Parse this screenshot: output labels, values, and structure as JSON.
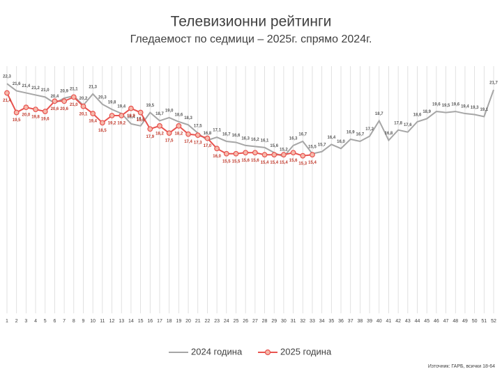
{
  "chart_data": {
    "type": "line",
    "title": "Телевизионни рейтинги",
    "subtitle": "Гледаемост по седмици – 2025г. спрямо 2024г.",
    "source": "Източник: ГАРБ, всички 18-64",
    "categories": [
      "1",
      "2",
      "3",
      "4",
      "5",
      "6",
      "7",
      "8",
      "9",
      "10",
      "11",
      "12",
      "13",
      "14",
      "15",
      "16",
      "17",
      "18",
      "19",
      "20",
      "21",
      "22",
      "23",
      "24",
      "25",
      "26",
      "27",
      "28",
      "29",
      "30",
      "31",
      "32",
      "33",
      "34",
      "35",
      "36",
      "37",
      "38",
      "39",
      "40",
      "41",
      "42",
      "43",
      "44",
      "45",
      "46",
      "47",
      "48",
      "49",
      "50",
      "51",
      "52"
    ],
    "ylim": [
      0,
      24
    ],
    "grid": true,
    "legend": "bottom",
    "series": [
      {
        "name": "2024 година",
        "color": "#a6a6a6",
        "values": [
          22.3,
          21.6,
          21.4,
          21.2,
          21.0,
          20.4,
          20.9,
          21.1,
          20.2,
          21.3,
          20.3,
          19.8,
          19.4,
          18.4,
          18.2,
          19.5,
          18.7,
          19.0,
          18.6,
          18.3,
          17.5,
          16.8,
          17.1,
          16.7,
          16.6,
          16.3,
          16.2,
          16.1,
          15.6,
          15.2,
          16.3,
          16.7,
          15.5,
          15.7,
          16.4,
          16.0,
          16.9,
          16.7,
          17.2,
          18.7,
          16.8,
          17.8,
          17.6,
          18.6,
          18.9,
          19.6,
          19.5,
          19.6,
          19.4,
          19.3,
          19.1,
          21.7
        ],
        "value_labels": [
          "22,3",
          "21,6",
          "21,4",
          "21,2",
          "21,0",
          "20,4",
          "20,9",
          "21,1",
          "20,2",
          "21,3",
          "20,3",
          "19,8",
          "19,4",
          "18,4",
          "18,2",
          "19,5",
          "18,7",
          "19,0",
          "18,6",
          "18,3",
          "17,5",
          "16,8",
          "17,1",
          "16,7",
          "16,6",
          "16,3",
          "16,2",
          "16,1",
          "15,6",
          "15,2",
          "16,3",
          "16,7",
          "15,5",
          "15,7",
          "16,4",
          "16,0",
          "16,9",
          "16,7",
          "17,2",
          "18,7",
          "16,8",
          "17,8",
          "17,6",
          "18,6",
          "18,9",
          "19,6",
          "19,5",
          "19,6",
          "19,4",
          "19,3",
          "19,1",
          "21,7"
        ]
      },
      {
        "name": "2025 година",
        "color": "#e8534f",
        "values": [
          21.4,
          19.5,
          20.0,
          19.8,
          19.6,
          20.6,
          20.6,
          21.0,
          20.1,
          19.4,
          18.5,
          19.2,
          19.2,
          19.9,
          19.5,
          17.9,
          18.2,
          17.5,
          18.2,
          17.4,
          17.3,
          17.0,
          16.0,
          15.5,
          15.5,
          15.6,
          15.6,
          15.4,
          15.4,
          15.4,
          15.6,
          15.3,
          15.4,
          null,
          null,
          null,
          null,
          null,
          null,
          null,
          null,
          null,
          null,
          null,
          null,
          null,
          null,
          null,
          null,
          null,
          null,
          null
        ],
        "value_labels": [
          "21,4",
          "19,5",
          "20,0",
          "19,8",
          "19,6",
          "20,6",
          "20,6",
          "21,0",
          "20,1",
          "19,4",
          "18,5",
          "19,2",
          "19,2",
          "19,9",
          "19,5",
          "17,9",
          "18,2",
          "17,5",
          "18,2",
          "17,4",
          "17,3",
          "17,0",
          "16,0",
          "15,5",
          "15,5",
          "15,6",
          "15,6",
          "15,4",
          "15,4",
          "15,4",
          "15,6",
          "15,3",
          "15,4",
          null,
          null,
          null,
          null,
          null,
          null,
          null,
          null,
          null,
          null,
          null,
          null,
          null,
          null,
          null,
          null,
          null,
          null,
          null
        ]
      }
    ]
  }
}
